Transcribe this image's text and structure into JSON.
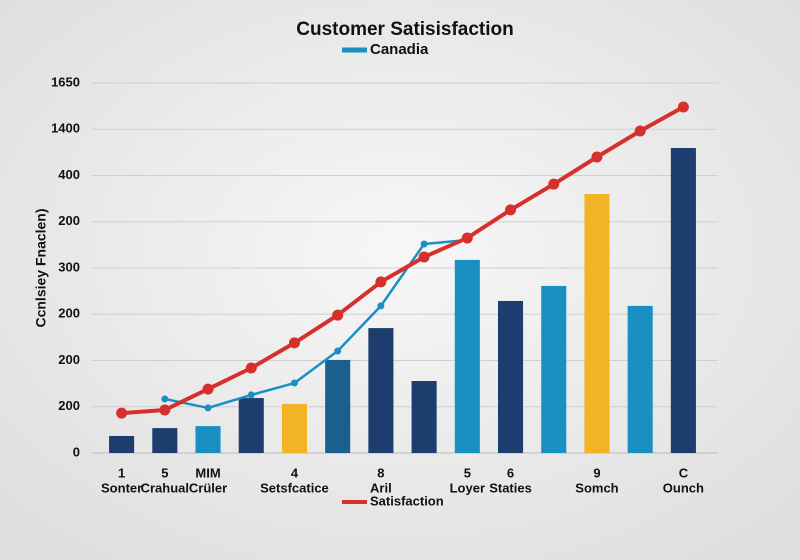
{
  "chart_data": {
    "type": "bar",
    "title": "Customer Satisisfaction",
    "y_label": "Ccnlsiey Fnaclen)",
    "categories": [
      "1",
      "5",
      "MIM",
      null,
      "4",
      null,
      "8",
      null,
      "5",
      "6",
      null,
      "9",
      null,
      "C"
    ],
    "category_sublabels": [
      "Sonter",
      "Crahual",
      "Crüler",
      null,
      "Setsfcatice",
      null,
      "Aril",
      null,
      "Loyer",
      "Staties",
      null,
      "Somch",
      null,
      "Ounch"
    ],
    "ylim": [
      0,
      1650
    ],
    "yticks": [
      0,
      {
        "value": 206.25,
        "label": "200"
      },
      {
        "value": 412.5,
        "label": "200"
      },
      {
        "value": 618.75,
        "label": "200"
      },
      {
        "value": 825,
        "label": "300"
      },
      {
        "value": 1031.25,
        "label": "200"
      },
      {
        "value": 1237.5,
        "label": "400"
      },
      {
        "value": 1443.75,
        "label": "1400"
      },
      1650
    ],
    "grid": true,
    "series": [
      {
        "kind": "bar",
        "colors": [
          "#1c3d6e",
          "#1c3d6e",
          "#1a90c2",
          "#1c3d6e",
          "#f2b325",
          "#1b5f8f",
          "#1c3d6e",
          "#1c3d6e",
          "#1a90c2",
          "#1c3d6e",
          "#1a90c2",
          "#f2b325",
          "#1a90c2",
          "#1c3d6e"
        ],
        "values": [
          76,
          111,
          120,
          245,
          219,
          415,
          557,
          321,
          861,
          678,
          745,
          1155,
          656,
          1360
        ]
      },
      {
        "kind": "line",
        "name": "Canadia",
        "color": "#1a90c2",
        "legend": "top",
        "values": [
          null,
          241,
          201,
          259,
          312,
          455,
          656,
          932,
          950,
          null,
          null,
          null,
          null,
          null
        ]
      },
      {
        "kind": "line",
        "name": "Satisfaction",
        "color": "#d6302c",
        "legend": "bottom",
        "values": [
          178,
          192,
          285,
          379,
          491,
          615,
          763,
          874,
          959,
          1084,
          1199,
          1320,
          1436,
          1543
        ]
      }
    ]
  }
}
